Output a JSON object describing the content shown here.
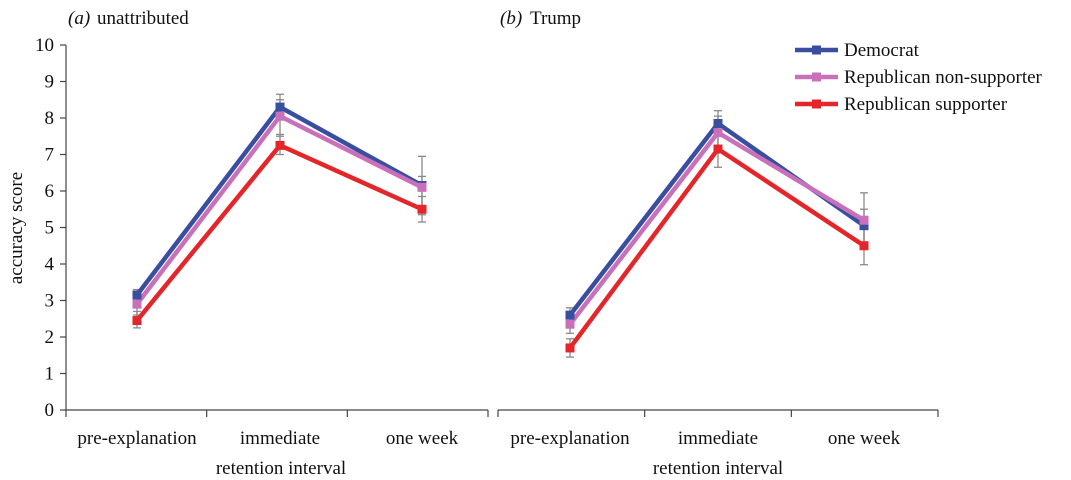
{
  "chart_data": [
    {
      "type": "line",
      "panel_label": "(a)",
      "title": "unattributed",
      "ylabel": "accuracy score",
      "xlabel": "retention interval",
      "ylim": [
        0,
        10
      ],
      "yticks": [
        0,
        1,
        2,
        3,
        4,
        5,
        6,
        7,
        8,
        9,
        10
      ],
      "categories": [
        "pre-explanation",
        "immediate",
        "one week"
      ],
      "series": [
        {
          "name": "Democrat",
          "color": "#3a4ea0",
          "values": [
            3.15,
            8.3,
            6.15
          ],
          "err_low": [
            2.95,
            7.95,
            5.45
          ],
          "err_high": [
            3.3,
            8.65,
            6.95
          ]
        },
        {
          "name": "Republican non-supporter",
          "color": "#c970bb",
          "values": [
            2.9,
            8.05,
            6.1
          ],
          "err_low": [
            2.6,
            7.5,
            5.35
          ],
          "err_high": [
            3.2,
            8.5,
            6.4
          ]
        },
        {
          "name": "Republican supporter",
          "color": "#e4262a",
          "values": [
            2.45,
            7.25,
            5.5
          ],
          "err_low": [
            2.25,
            7.0,
            5.15
          ],
          "err_high": [
            2.7,
            7.55,
            5.85
          ]
        }
      ]
    },
    {
      "type": "line",
      "panel_label": "(b)",
      "title": "Trump",
      "xlabel": "retention interval",
      "ylim": [
        0,
        10
      ],
      "categories": [
        "pre-explanation",
        "immediate",
        "one week"
      ],
      "legend_position": "top-right",
      "series": [
        {
          "name": "Democrat",
          "color": "#3a4ea0",
          "values": [
            2.6,
            7.85,
            5.05
          ],
          "err_low": [
            2.4,
            7.5,
            4.6
          ],
          "err_high": [
            2.8,
            8.2,
            5.5
          ]
        },
        {
          "name": "Republican non-supporter",
          "color": "#c970bb",
          "values": [
            2.35,
            7.6,
            5.2
          ],
          "err_low": [
            2.1,
            7.1,
            4.5
          ],
          "err_high": [
            2.6,
            8.05,
            5.95
          ]
        },
        {
          "name": "Republican supporter",
          "color": "#e4262a",
          "values": [
            1.7,
            7.15,
            4.5
          ],
          "err_low": [
            1.45,
            6.65,
            3.98
          ],
          "err_high": [
            1.95,
            7.6,
            5.0
          ]
        }
      ]
    }
  ]
}
